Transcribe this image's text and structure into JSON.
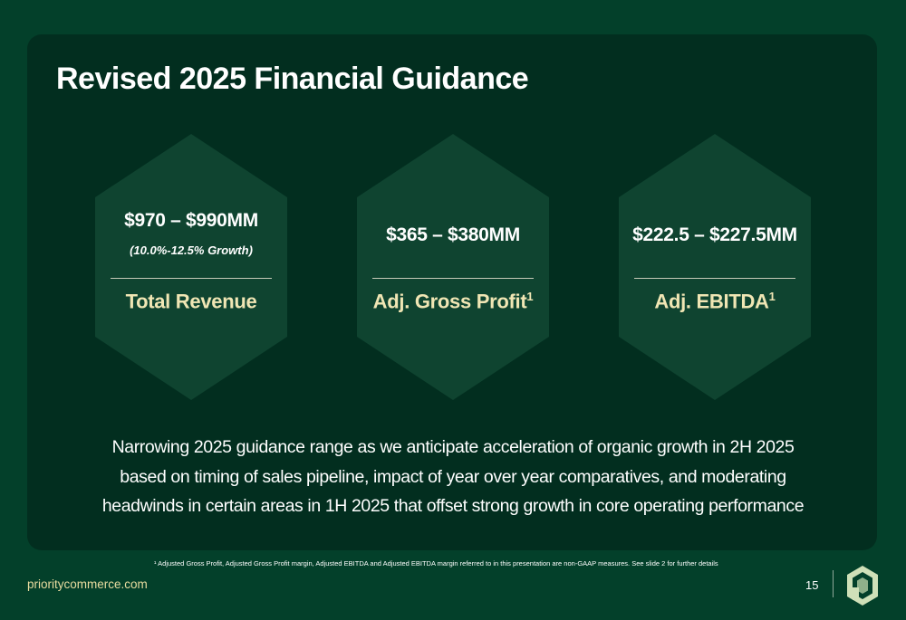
{
  "slide": {
    "title": "Revised 2025 Financial Guidance",
    "cards": [
      {
        "value": "$970 – $990MM",
        "sub": "(10.0%-12.5% Growth)",
        "metric": "Total Revenue",
        "footnote_mark": ""
      },
      {
        "value": "$365 – $380MM",
        "sub": "",
        "metric": "Adj. Gross Profit",
        "footnote_mark": "1"
      },
      {
        "value": "$222.5 – $227.5MM",
        "sub": "",
        "metric": "Adj. EBITDA",
        "footnote_mark": "1"
      }
    ],
    "narrative": [
      "Narrowing 2025 guidance range as we anticipate acceleration of organic growth in 2H 2025",
      "based on timing of sales pipeline, impact of year over year comparatives, and moderating",
      "headwinds in certain areas in 1H 2025 that offset strong growth in core operating performance"
    ],
    "footnote": "¹ Adjusted Gross Profit, Adjusted Gross Profit margin, Adjusted EBITDA and Adjusted EBITDA margin referred to in this presentation are non-GAAP measures. See slide 2 for further details"
  },
  "footer": {
    "website": "prioritycommerce.com",
    "page_number": "15",
    "logo_icon": "priority-logo-icon"
  },
  "colors": {
    "background": "#03402a",
    "panel": "#022e1f",
    "hexagon": "#0f4430",
    "metric_text": "#f0e6b4",
    "logo_light": "#cfe0b8",
    "logo_dark": "#8fb08a"
  }
}
